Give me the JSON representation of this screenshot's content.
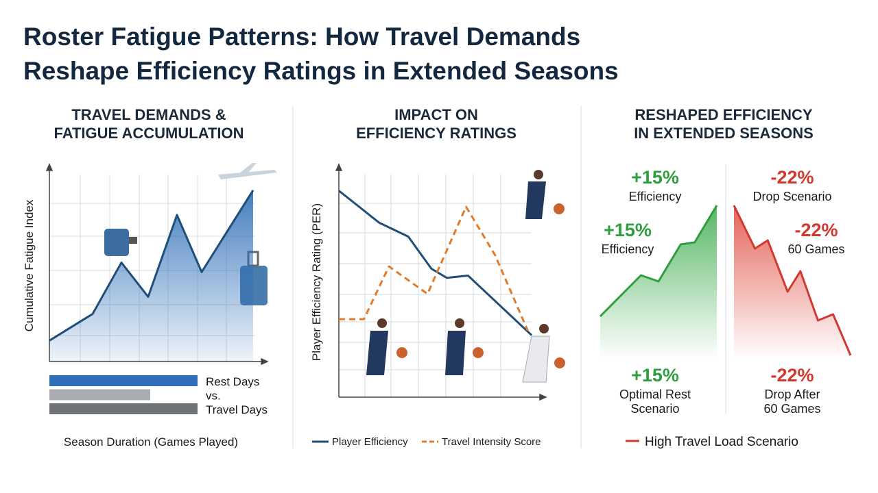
{
  "title": [
    "Roster Fatigue Patterns: How Travel Demands",
    "Reshape Efficiency Ratings in Extended Seasons"
  ],
  "chart_data": [
    {
      "type": "area",
      "heading": [
        "TRAVEL DEMANDS &",
        "FATIGUE ACCUMULATION"
      ],
      "y_label": "Cumulative Fatigue Index",
      "x_label": "Season Duration (Games Played)",
      "x": [
        0,
        21,
        35,
        48,
        62,
        74,
        99
      ],
      "values": [
        11,
        25,
        52,
        34,
        77,
        47,
        90
      ],
      "xlim": [
        0,
        100
      ],
      "ylim": [
        0,
        100
      ],
      "color": "#1f4e79"
    },
    {
      "type": "hbar",
      "values": [
        72,
        49,
        72
      ],
      "colors": [
        "#2f6fb8",
        "#a9adb2",
        "#6f7378"
      ],
      "labels": [
        "Rest Days",
        "vs.",
        "Travel Days"
      ],
      "xlim": [
        0,
        100
      ]
    },
    {
      "type": "line",
      "heading": [
        "IMPACT ON",
        "EFFICIENCY RATINGS"
      ],
      "y_label": "Player Efficiency Rating (PER)",
      "xlim": [
        0,
        100
      ],
      "ylim": [
        0,
        100
      ],
      "series": [
        {
          "name": "Player Efficiency",
          "color": "#1f4e79",
          "dash": false,
          "x": [
            0,
            21,
            36,
            48,
            56,
            67,
            100
          ],
          "values": [
            90,
            76,
            70,
            56,
            52,
            53,
            27
          ]
        },
        {
          "name": "Travel Intensity Score",
          "color": "#e07b2c",
          "dash": true,
          "x": [
            0,
            13,
            26,
            46,
            66,
            81,
            98
          ],
          "values": [
            34,
            34,
            57,
            45,
            83,
            62,
            29
          ]
        }
      ]
    },
    {
      "type": "area",
      "heading": [
        "RESHAPED EFFICIENCY",
        "IN EXTENDED SEASONS"
      ],
      "xlim": [
        0,
        100
      ],
      "ylim": [
        0,
        100
      ],
      "series": [
        {
          "color": "#2e9e3e",
          "x": [
            0,
            35,
            50,
            69,
            81,
            100
          ],
          "values": [
            26,
            46,
            43,
            61,
            62,
            80
          ],
          "annotations": [
            {
              "value": "+15%",
              "label": [
                "Efficiency"
              ]
            },
            {
              "value": "+15%",
              "label": [
                "Efficiency"
              ]
            },
            {
              "value": "+15%",
              "label": [
                "Optimal Rest",
                "Scenario"
              ]
            }
          ]
        },
        {
          "name": "High Travel Load Scenario",
          "color": "#d0392f",
          "x": [
            0,
            18,
            29,
            46,
            57,
            72,
            85,
            100
          ],
          "values": [
            80,
            59,
            63,
            38,
            48,
            24,
            27,
            7
          ],
          "annotations": [
            {
              "value": "-22%",
              "label": [
                "Drop Scenario"
              ]
            },
            {
              "value": "-22%",
              "label": [
                "60 Games"
              ]
            },
            {
              "value": "-22%",
              "label": [
                "Drop After",
                "60 Games"
              ]
            }
          ]
        }
      ]
    }
  ]
}
